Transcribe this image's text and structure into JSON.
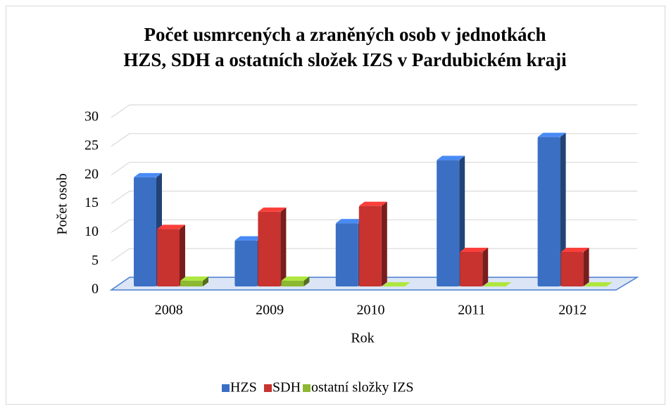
{
  "chart_data": {
    "type": "bar3d",
    "title": [
      "Počet usmrcených a zraněných osob v jednotkách",
      "HZS, SDH a ostatních složek IZS v Pardubickém kraji"
    ],
    "x_label": "Rok",
    "y_label": "Počet osob",
    "categories": [
      "2008",
      "2009",
      "2010",
      "2011",
      "2012"
    ],
    "series": [
      {
        "name": "HZS",
        "color": "#3a6fc4",
        "values": [
          19,
          8,
          11,
          22,
          26
        ]
      },
      {
        "name": "SDH",
        "color": "#c8322f",
        "values": [
          10,
          13,
          14,
          6,
          6
        ]
      },
      {
        "name": "ostatní složky IZS",
        "color": "#8cb832",
        "values": [
          1,
          1,
          0,
          0,
          0
        ]
      }
    ],
    "ylim": [
      0,
      30
    ],
    "yticks": [
      0,
      5,
      10,
      15,
      20,
      25,
      30
    ],
    "grid": true,
    "legend": "bottom"
  }
}
